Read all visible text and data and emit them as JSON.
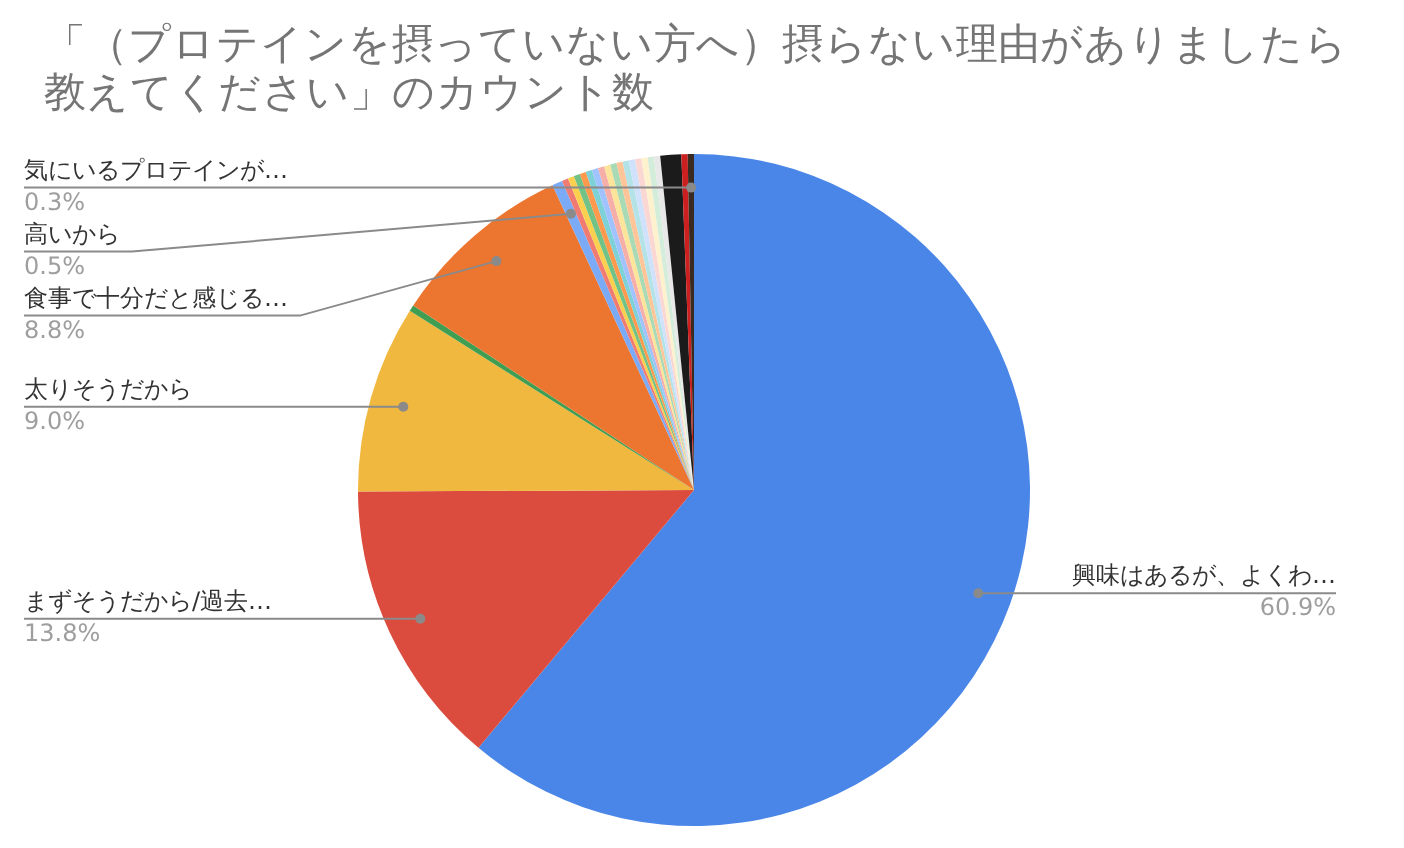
{
  "chart_data": {
    "type": "pie",
    "title": "「（プロテインを摂っていない方へ）摂らない理由がありましたら教えてください」のカウント数",
    "categories": [
      "興味はあるが、よくわ…",
      "まずそうだから/過去…",
      "太りそうだから",
      null,
      "食事で十分だと感じる…",
      "高いから",
      null,
      null,
      null,
      null,
      null,
      null,
      null,
      null,
      null,
      null,
      null,
      null,
      null,
      null,
      null,
      null,
      null,
      null,
      "気にいるプロテインが…"
    ],
    "values": [
      60.9,
      13.8,
      9.0,
      0.3,
      8.8,
      0.5,
      0.3,
      0.3,
      0.3,
      0.3,
      0.3,
      0.3,
      0.3,
      0.3,
      0.3,
      0.3,
      0.3,
      0.3,
      0.3,
      0.3,
      0.3,
      0.3,
      1.0,
      0.3,
      0.3
    ],
    "value_labels": [
      "60.9%",
      "13.8%",
      "9.0%",
      null,
      "8.8%",
      "0.5%",
      null,
      null,
      null,
      null,
      null,
      null,
      null,
      null,
      null,
      null,
      null,
      null,
      null,
      null,
      null,
      null,
      null,
      null,
      "0.3%"
    ],
    "colors": [
      "#4a86e8",
      "#dc4c3e",
      "#f1b840",
      "#3f9e52",
      "#ec7630",
      "#7baaf7",
      "#f07b72",
      "#fcd04f",
      "#71c287",
      "#ff994d",
      "#7ed1d7",
      "#a0c3ff",
      "#f6aea9",
      "#fde49b",
      "#a8dab5",
      "#ffc599",
      "#b3e3e7",
      "#d0e1fc",
      "#fbd7d4",
      "#fef1cd",
      "#d4eddb",
      "#e8e8e8",
      "#1b1b1b",
      "#cc1f1f",
      "#3a2a20"
    ],
    "legend": false
  }
}
